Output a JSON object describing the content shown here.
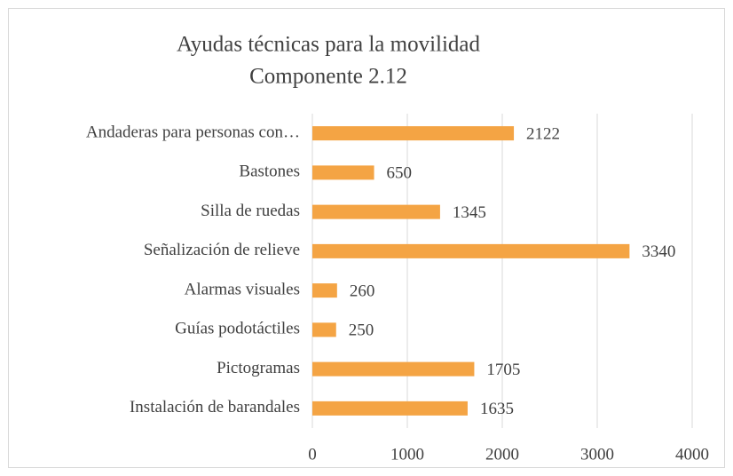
{
  "chart_data": {
    "type": "bar",
    "orientation": "horizontal",
    "title": "Ayudas técnicas para la movilidad",
    "subtitle": "Componente 2.12",
    "categories": [
      "Andaderas para personas con…",
      "Bastones",
      "Silla de ruedas",
      "Señalización de relieve",
      "Alarmas visuales",
      "Guías podotáctiles",
      "Pictogramas",
      "Instalación de barandales"
    ],
    "values": [
      2122,
      650,
      1345,
      3340,
      260,
      250,
      1705,
      1635
    ],
    "color": "#f4a444",
    "xlim": [
      0,
      4000
    ],
    "xticks": [
      0,
      1000,
      2000,
      3000,
      4000
    ],
    "grid": true
  }
}
